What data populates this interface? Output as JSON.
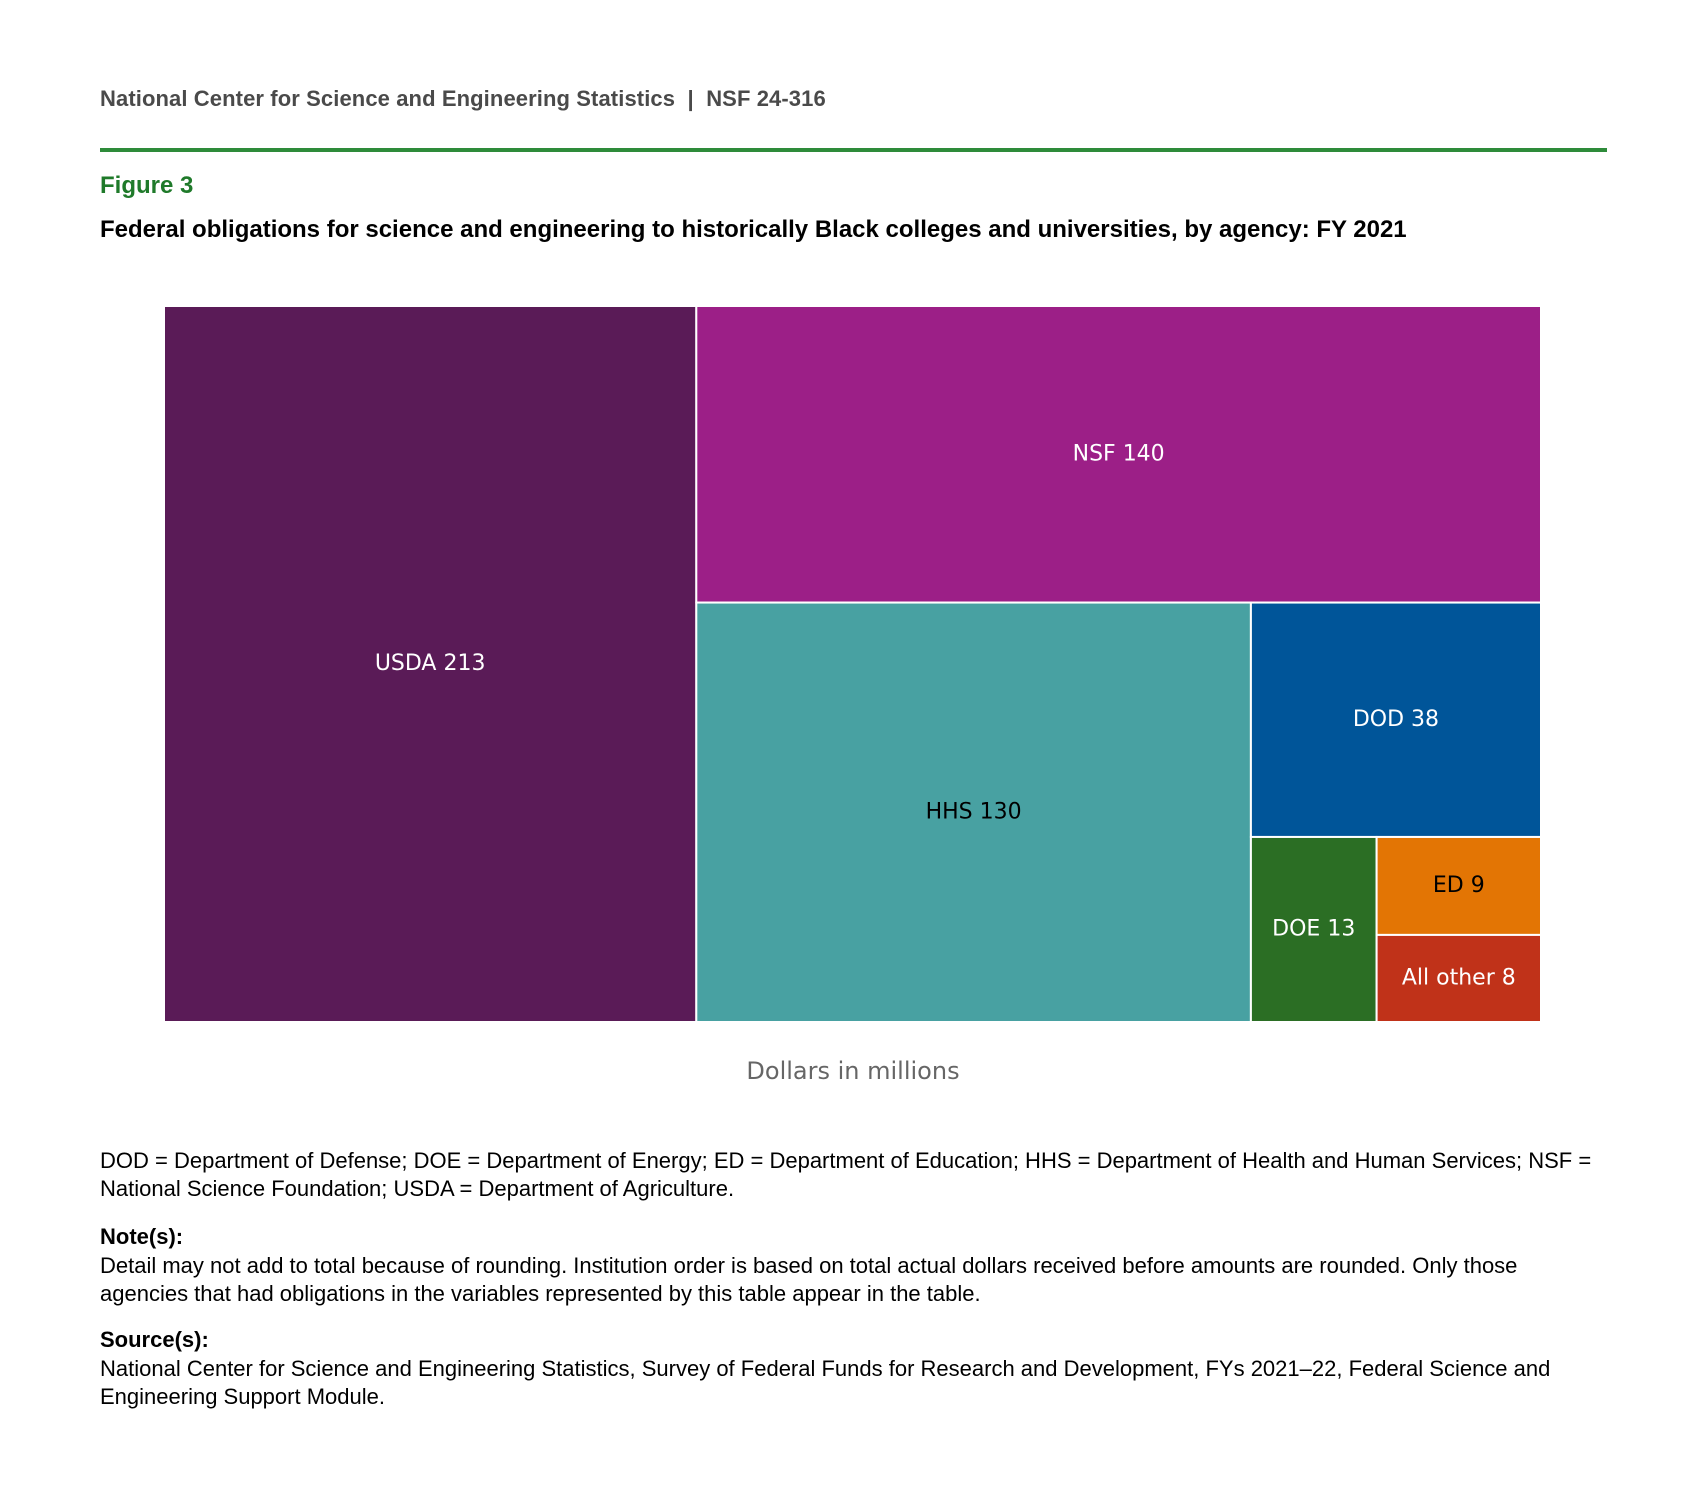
{
  "header": "National Center for Science and Engineering Statistics  |  NSF 24-316",
  "figure_label": "Figure 3",
  "chart_data": {
    "type": "treemap",
    "title": "Federal obligations for science and engineering to historically Black colleges and universities, by agency: FY 2021",
    "xlabel": "Dollars in millions",
    "categories": [
      "USDA",
      "NSF",
      "HHS",
      "DOD",
      "DOE",
      "ED",
      "All other"
    ],
    "values": [
      213,
      140,
      130,
      38,
      13,
      9,
      8
    ],
    "colors": [
      "#5a1b57",
      "#9c1f87",
      "#48a1a2",
      "#005599",
      "#2b6e24",
      "#e37504",
      "#c03219"
    ],
    "label_colors": [
      "#ffffff",
      "#ffffff",
      "#000000",
      "#ffffff",
      "#ffffff",
      "#000000",
      "#ffffff"
    ]
  },
  "abbreviations": "DOD = Department of Defense; DOE = Department of Energy; ED = Department of Education; HHS = Department of Health and Human Services; NSF = National Science Foundation; USDA = Department of Agriculture.",
  "notes": {
    "heading": "Note(s):",
    "text": "Detail may not add to total because of rounding. Institution order is based on total actual dollars received before amounts are rounded. Only those agencies that had obligations in the variables represented by this table appear in the table."
  },
  "sources": {
    "heading": "Source(s):",
    "text": "National Center for Science and Engineering Statistics, Survey of Federal Funds for Research and Development, FYs 2021–22, Federal Science and Engineering Support Module."
  }
}
